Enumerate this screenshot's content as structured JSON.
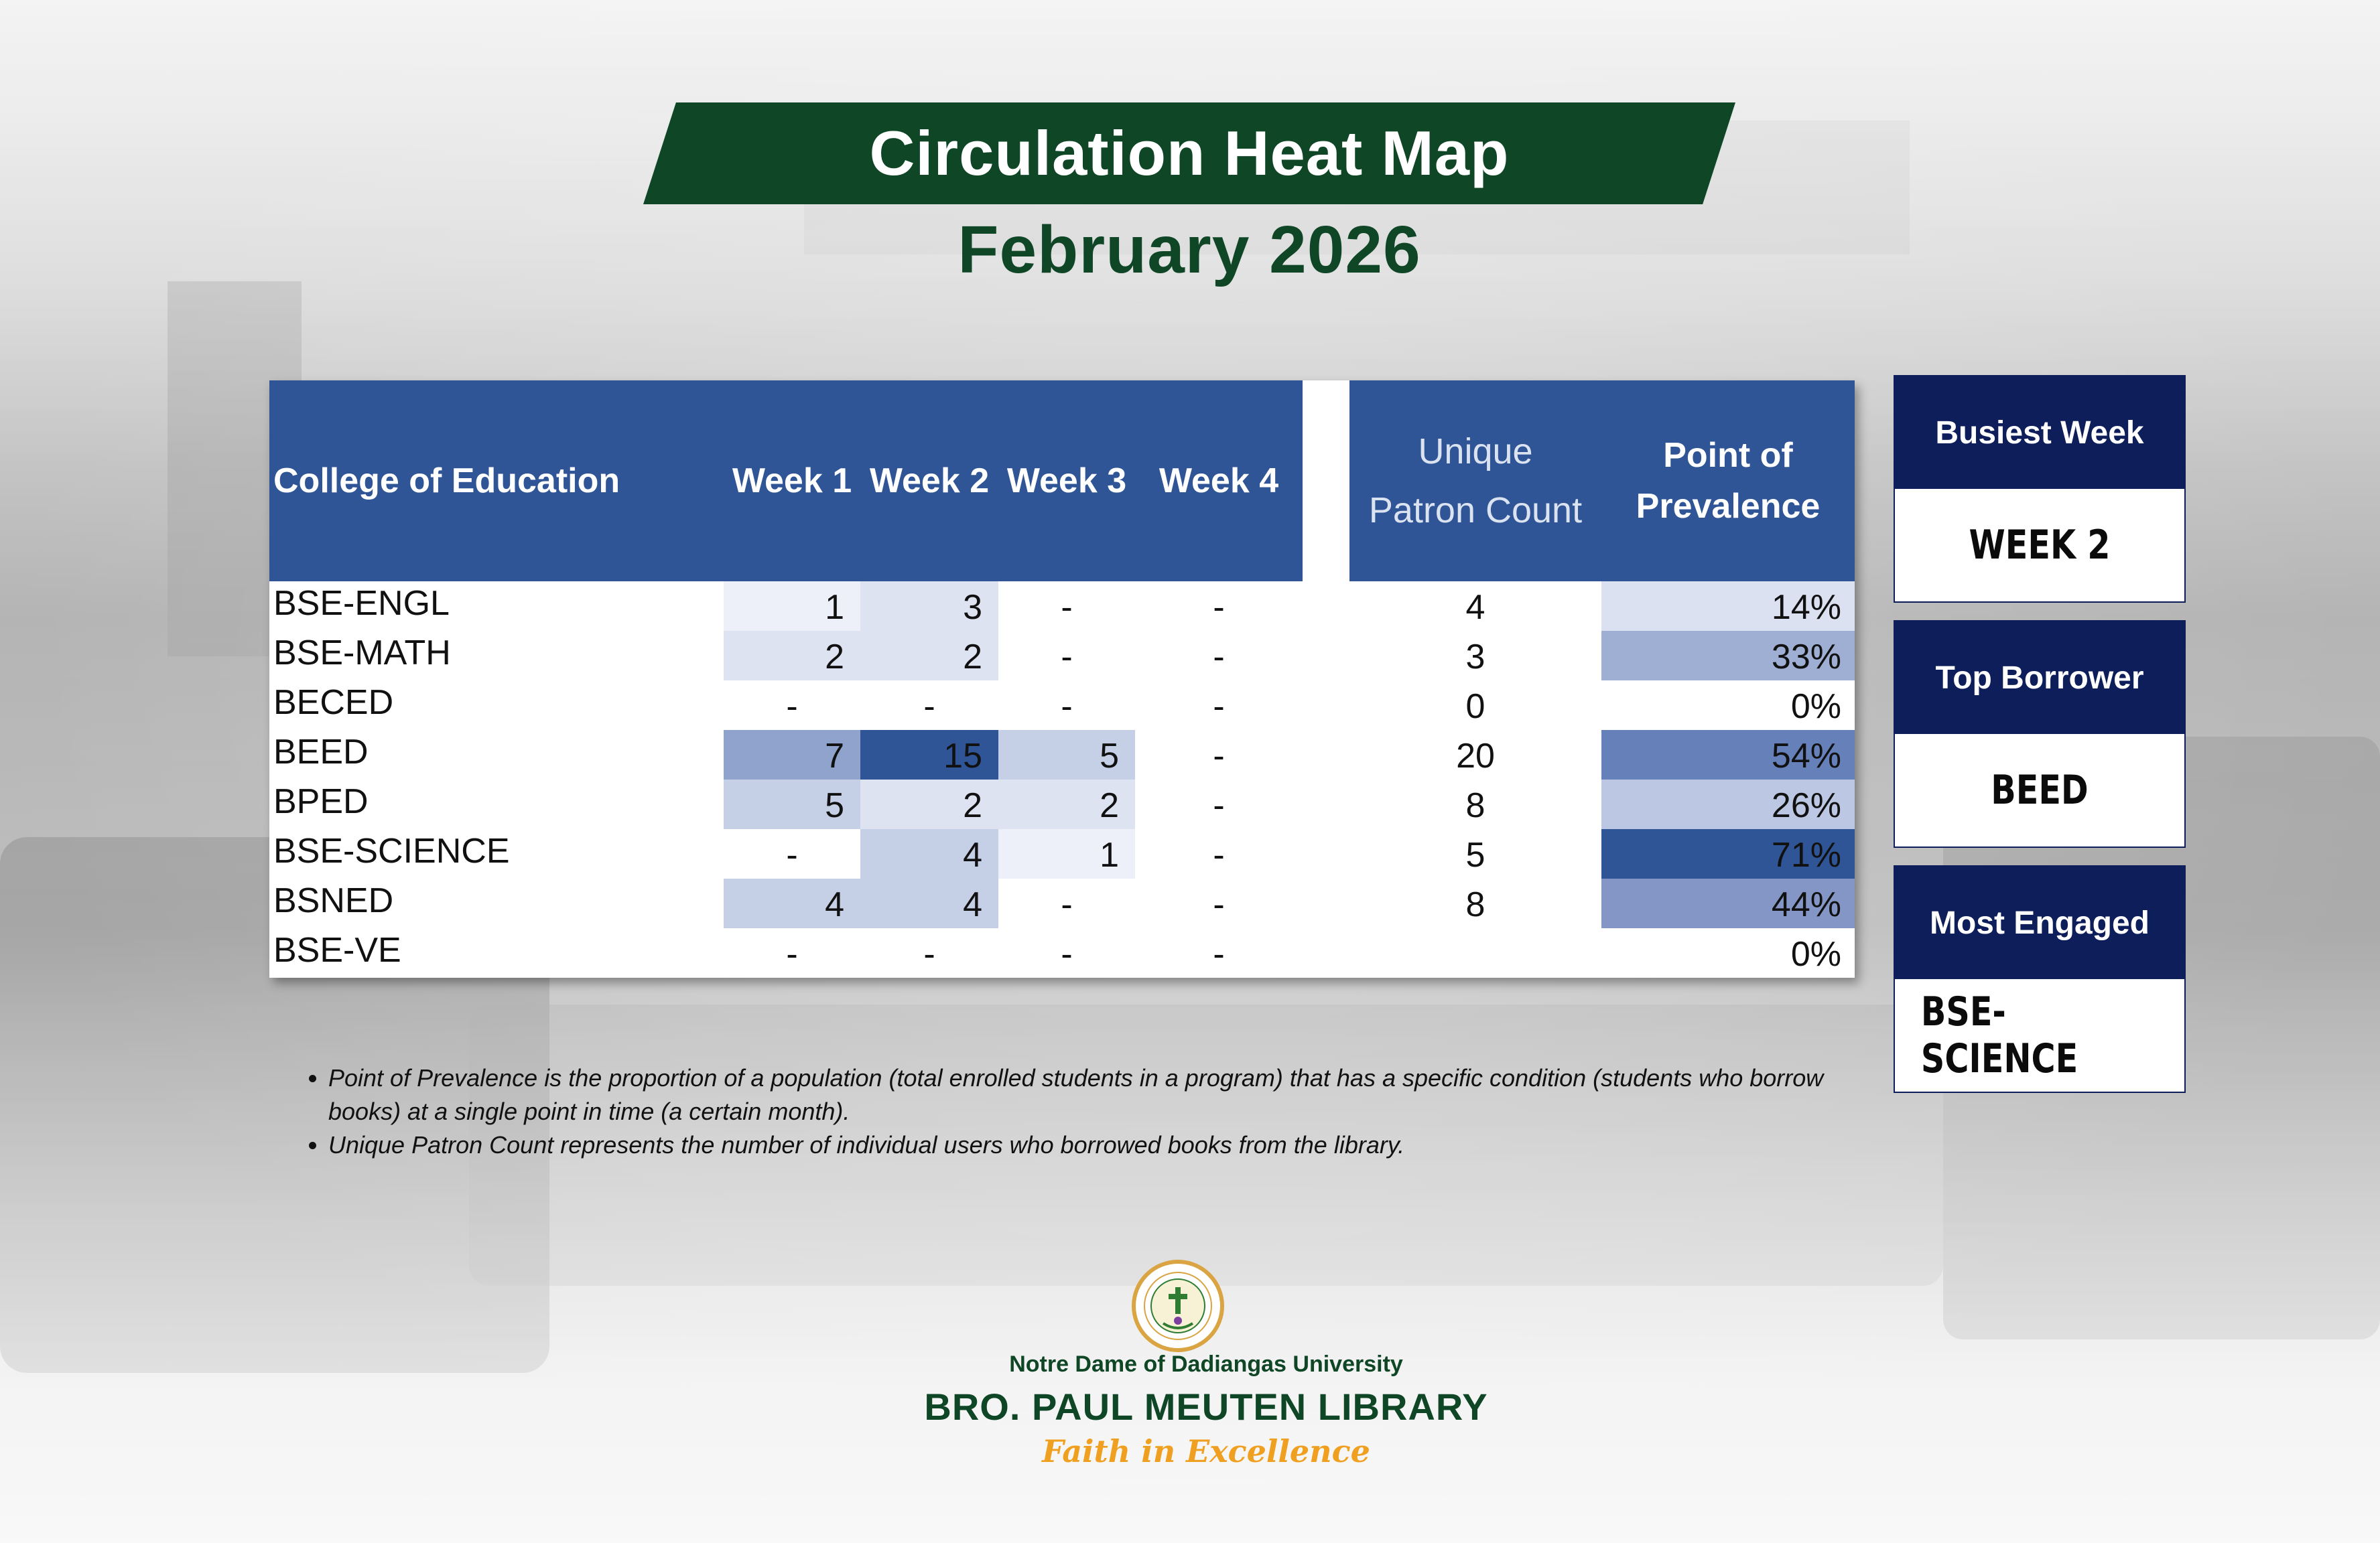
{
  "title": "Circulation Heat Map",
  "subtitle": "February 2026",
  "colors": {
    "header_blue": "#2f5597",
    "dark_green": "#0e4626",
    "kpi_navy": "#0e1e5a",
    "tagline_orange": "#f0a020"
  },
  "chart_data": {
    "type": "heatmap",
    "title": "Circulation Heat Map",
    "subtitle": "February 2026",
    "columns": [
      "College of Education",
      "Week 1",
      "Week 2",
      "Week 3",
      "Week 4",
      "Unique Patron Count",
      "Point of Prevalence"
    ],
    "header": {
      "college": "College of Education",
      "weeks": [
        "Week 1",
        "Week 2",
        "Week 3",
        "Week 4"
      ],
      "unique_line1": "Unique",
      "unique_line2": "Patron Count",
      "prev_line1": "Point of",
      "prev_line2": "Prevalence"
    },
    "rows": [
      {
        "program": "BSE-ENGL",
        "weeks": [
          "1",
          "3",
          "-",
          "-"
        ],
        "unique": "4",
        "prevalence": "14%"
      },
      {
        "program": "BSE-MATH",
        "weeks": [
          "2",
          "2",
          "-",
          "-"
        ],
        "unique": "3",
        "prevalence": "33%"
      },
      {
        "program": "BECED",
        "weeks": [
          "-",
          "-",
          "-",
          "-"
        ],
        "unique": "0",
        "prevalence": "0%"
      },
      {
        "program": "BEED",
        "weeks": [
          "7",
          "15",
          "5",
          "-"
        ],
        "unique": "20",
        "prevalence": "54%"
      },
      {
        "program": "BPED",
        "weeks": [
          "5",
          "2",
          "2",
          "-"
        ],
        "unique": "8",
        "prevalence": "26%"
      },
      {
        "program": "BSE-SCIENCE",
        "weeks": [
          "-",
          "4",
          "1",
          "-"
        ],
        "unique": "5",
        "prevalence": "71%"
      },
      {
        "program": "BSNED",
        "weeks": [
          "4",
          "4",
          "-",
          "-"
        ],
        "unique": "8",
        "prevalence": "44%"
      },
      {
        "program": "BSE-VE",
        "weeks": [
          "-",
          "-",
          "-",
          "-"
        ],
        "unique": "",
        "prevalence": "0%"
      }
    ]
  },
  "kpis": [
    {
      "label": "Busiest Week",
      "value": "WEEK 2"
    },
    {
      "label": "Top Borrower",
      "value": "BEED"
    },
    {
      "label": "Most Engaged",
      "value": "BSE-SCIENCE"
    }
  ],
  "notes": [
    {
      "term": "Point of Prevalence",
      "text": " is the proportion of a population (total enrolled students in a program) that has a specific condition (students who borrow books) at a single point in time (a certain month)."
    },
    {
      "term": "Unique Patron Count",
      "text": " represents the number of individual users who borrowed books from the library."
    }
  ],
  "footer": {
    "university": "Notre Dame of Dadiangas University",
    "library": "BRO. PAUL MEUTEN LIBRARY",
    "tagline": "Faith in Excellence"
  }
}
